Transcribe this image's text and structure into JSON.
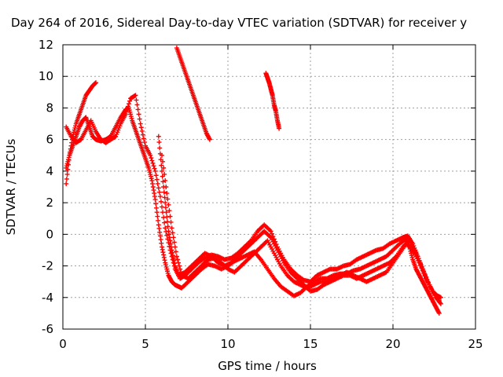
{
  "chart_data": {
    "type": "scatter",
    "title": "Day 264 of 2016, Sidereal Day-to-day VTEC variation (SDTVAR) for receiver y",
    "xlabel": "GPS time / hours",
    "ylabel": "SDTVAR / TECUs",
    "xlim": [
      0,
      25
    ],
    "ylim": [
      -6,
      12
    ],
    "xticks": [
      "0",
      "5",
      "10",
      "15",
      "20",
      "25"
    ],
    "yticks": [
      "-6",
      "-4",
      "-2",
      "0",
      "2",
      "4",
      "6",
      "8",
      "10",
      "12"
    ],
    "grid": true,
    "marker": "plus",
    "color": "#ff0000",
    "series": [
      {
        "x": [
          0.2,
          0.4,
          0.6,
          0.8,
          1.0,
          1.2,
          1.4,
          1.6,
          1.8,
          2.0
        ],
        "y": [
          3.2,
          5.0,
          6.2,
          7.0,
          7.6,
          8.2,
          8.8,
          9.1,
          9.4,
          9.6
        ]
      },
      {
        "x": [
          0.2,
          0.4,
          0.6,
          0.8,
          1.0,
          1.2,
          1.4,
          1.6,
          1.8,
          2.0,
          2.3,
          2.6,
          2.9,
          3.2,
          3.5,
          3.8,
          4.0,
          4.2,
          4.4,
          4.6,
          4.8,
          5.0,
          5.2,
          5.4,
          5.6,
          5.8,
          6.0,
          6.2,
          6.4,
          6.6,
          6.8,
          7.0,
          7.2,
          7.6,
          8.0,
          8.4,
          8.8,
          9.2,
          9.6,
          10.0,
          10.4,
          10.8,
          11.2,
          11.6,
          12.0,
          12.4,
          12.8,
          13.2,
          13.6,
          14.0,
          14.4,
          14.8,
          15.2,
          15.6,
          16.0,
          16.4,
          16.8,
          17.2,
          17.6,
          18.0,
          18.4,
          18.8,
          19.2,
          19.6,
          20.0,
          20.4,
          20.8,
          21.0,
          21.2,
          21.4,
          21.6,
          21.8,
          22.0,
          22.2,
          22.4,
          22.6,
          22.8
        ],
        "y": [
          4.2,
          5.0,
          5.6,
          6.2,
          6.8,
          7.2,
          7.4,
          6.8,
          6.2,
          6.0,
          5.9,
          6.0,
          6.2,
          6.8,
          7.4,
          7.9,
          8.0,
          7.2,
          6.6,
          6.0,
          5.4,
          4.8,
          4.2,
          3.4,
          2.2,
          0.6,
          -0.8,
          -1.8,
          -2.6,
          -3.0,
          -3.2,
          -3.3,
          -3.4,
          -3.0,
          -2.6,
          -2.2,
          -1.9,
          -2.0,
          -2.2,
          -2.0,
          -1.7,
          -1.5,
          -1.3,
          -1.1,
          -1.6,
          -2.2,
          -2.8,
          -3.3,
          -3.6,
          -3.9,
          -3.7,
          -3.3,
          -3.0,
          -2.8,
          -2.8,
          -2.6,
          -2.5,
          -2.5,
          -2.3,
          -2.2,
          -2.0,
          -1.8,
          -1.6,
          -1.4,
          -1.0,
          -0.6,
          -0.3,
          -0.8,
          -1.6,
          -2.2,
          -2.6,
          -3.0,
          -3.4,
          -3.8,
          -4.2,
          -4.6,
          -5.0
        ]
      },
      {
        "x": [
          0.2,
          0.5,
          0.8,
          1.1,
          1.4,
          1.7,
          2.0,
          2.3,
          2.6,
          2.9,
          3.2,
          3.5,
          3.8,
          4.1,
          4.4,
          4.7,
          5.0,
          5.3,
          5.6,
          5.9,
          6.2,
          6.5,
          6.8,
          7.1,
          7.4,
          7.8,
          8.2,
          8.6,
          9.0,
          9.4,
          9.8,
          10.2,
          10.6,
          11.0,
          11.4,
          11.8,
          12.2,
          12.6,
          13.0,
          13.4,
          13.8,
          14.2,
          14.6,
          15.0,
          15.4,
          15.8,
          16.2,
          16.6,
          17.0,
          17.4,
          17.8,
          18.2,
          18.6,
          19.0,
          19.4,
          19.8,
          20.2,
          20.6,
          20.9,
          21.2,
          21.5,
          21.8,
          22.1,
          22.4,
          22.7,
          22.9
        ],
        "y": [
          6.8,
          6.2,
          5.8,
          6.0,
          6.6,
          7.2,
          6.5,
          6.0,
          5.8,
          6.0,
          6.2,
          7.0,
          7.6,
          8.6,
          8.8,
          7.0,
          5.6,
          5.0,
          4.0,
          2.4,
          0.4,
          -1.0,
          -2.2,
          -2.8,
          -2.6,
          -2.2,
          -1.8,
          -1.5,
          -1.3,
          -1.4,
          -1.6,
          -1.5,
          -1.2,
          -0.8,
          -0.4,
          0.2,
          0.6,
          0.2,
          -0.8,
          -1.6,
          -2.2,
          -2.6,
          -2.9,
          -3.0,
          -2.6,
          -2.4,
          -2.2,
          -2.2,
          -2.0,
          -1.9,
          -1.6,
          -1.4,
          -1.2,
          -1.0,
          -0.9,
          -0.6,
          -0.4,
          -0.2,
          -0.1,
          -0.6,
          -1.4,
          -2.2,
          -3.0,
          -3.6,
          -3.9,
          -4.0
        ]
      },
      {
        "x": [
          6.9,
          7.1,
          7.3,
          7.5,
          7.7,
          7.9,
          8.1,
          8.3,
          8.5,
          8.7,
          8.9
        ],
        "y": [
          11.8,
          11.2,
          10.6,
          10.0,
          9.4,
          8.8,
          8.2,
          7.6,
          7.0,
          6.4,
          6.0
        ]
      },
      {
        "x": [
          12.3,
          12.4,
          12.5,
          12.6,
          12.7,
          12.8,
          12.9,
          13.0,
          13.1
        ],
        "y": [
          10.2,
          9.9,
          9.6,
          9.2,
          8.8,
          8.2,
          7.8,
          7.2,
          6.7
        ]
      },
      {
        "x": [
          5.8,
          6.0,
          6.2,
          6.4,
          6.6,
          6.8,
          7.0,
          7.4,
          7.8,
          8.2,
          8.6,
          9.0,
          9.4,
          9.8,
          10.2,
          10.6,
          11.0,
          11.4,
          11.8,
          12.2,
          12.6,
          13.0,
          13.4,
          13.8,
          14.2,
          14.6,
          15.0,
          15.4,
          15.8,
          16.2,
          16.6,
          17.0,
          17.4,
          17.8,
          18.2,
          18.6,
          19.0,
          19.4,
          19.8,
          20.2,
          20.6,
          21.0,
          21.4,
          21.8,
          22.2,
          22.6,
          22.9
        ],
        "y": [
          6.2,
          4.0,
          2.0,
          0.2,
          -1.0,
          -2.0,
          -2.6,
          -2.4,
          -2.0,
          -1.6,
          -1.2,
          -1.4,
          -1.8,
          -2.0,
          -1.8,
          -1.4,
          -1.0,
          -0.6,
          -0.2,
          0.2,
          -0.2,
          -1.0,
          -1.8,
          -2.4,
          -2.8,
          -3.2,
          -3.6,
          -3.5,
          -3.2,
          -3.0,
          -2.8,
          -2.6,
          -2.6,
          -2.8,
          -2.6,
          -2.4,
          -2.2,
          -2.0,
          -1.8,
          -1.4,
          -0.8,
          -0.4,
          -1.2,
          -2.2,
          -3.2,
          -4.0,
          -4.4
        ]
      },
      {
        "x": [
          6.0,
          6.3,
          6.6,
          6.9,
          7.2,
          7.6,
          8.0,
          8.4,
          8.8,
          9.2,
          9.6,
          10.0,
          10.4,
          10.8,
          11.2,
          11.6,
          12.0,
          12.4,
          12.8,
          13.2,
          13.6,
          14.0,
          14.4,
          14.8,
          15.2,
          15.6,
          16.0,
          16.4,
          16.8,
          17.2,
          17.6,
          18.0,
          18.4,
          18.8,
          19.2,
          19.6,
          20.0,
          20.4,
          20.8,
          21.2,
          21.6,
          22.0,
          22.4,
          22.8
        ],
        "y": [
          5.0,
          2.6,
          0.4,
          -1.4,
          -2.6,
          -2.8,
          -2.4,
          -2.0,
          -1.6,
          -1.5,
          -1.8,
          -2.2,
          -2.4,
          -2.0,
          -1.6,
          -1.2,
          -0.8,
          -0.4,
          -1.2,
          -2.0,
          -2.6,
          -3.0,
          -3.2,
          -3.4,
          -3.2,
          -3.0,
          -3.0,
          -2.8,
          -2.6,
          -2.4,
          -2.6,
          -2.8,
          -3.0,
          -2.8,
          -2.6,
          -2.4,
          -1.8,
          -1.2,
          -0.6,
          -1.0,
          -1.8,
          -2.8,
          -3.6,
          -4.2
        ]
      }
    ]
  }
}
